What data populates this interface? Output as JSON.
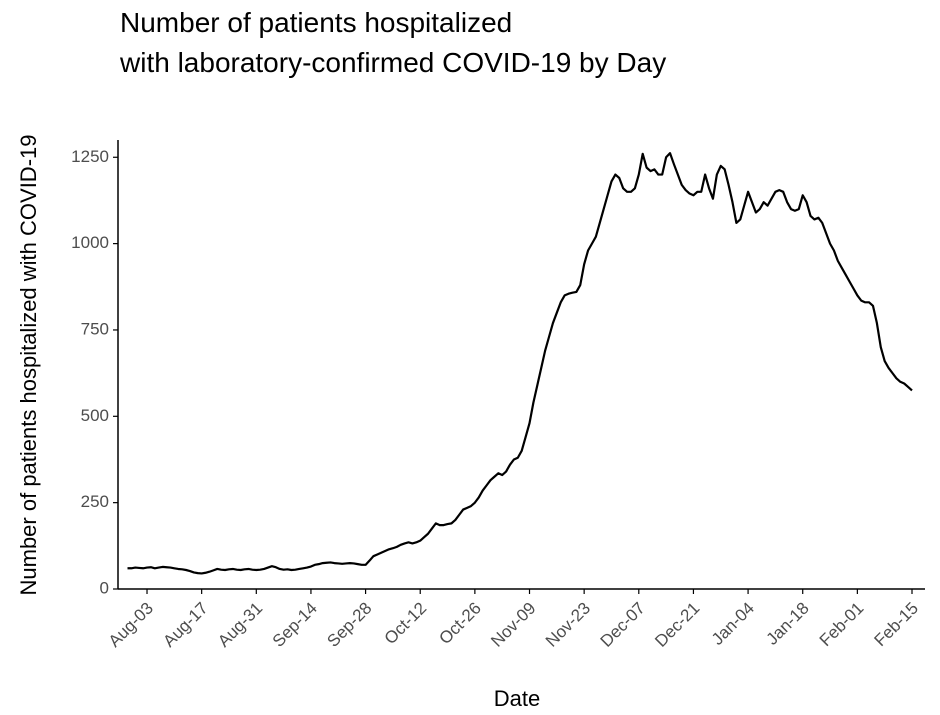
{
  "chart_data": {
    "type": "line",
    "title": [
      "Number of patients hospitalized",
      "with laboratory-confirmed COVID-19 by Day"
    ],
    "x_label": "Date",
    "y_label": "Number of patients hospitalized with COVID-19",
    "color": "#000000",
    "x": [
      "Jul-29",
      "Jul-30",
      "Jul-31",
      "Aug-01",
      "Aug-02",
      "Aug-03",
      "Aug-04",
      "Aug-05",
      "Aug-06",
      "Aug-07",
      "Aug-08",
      "Aug-09",
      "Aug-10",
      "Aug-11",
      "Aug-12",
      "Aug-13",
      "Aug-14",
      "Aug-15",
      "Aug-16",
      "Aug-17",
      "Aug-18",
      "Aug-19",
      "Aug-20",
      "Aug-21",
      "Aug-22",
      "Aug-23",
      "Aug-24",
      "Aug-25",
      "Aug-26",
      "Aug-27",
      "Aug-28",
      "Aug-29",
      "Aug-30",
      "Aug-31",
      "Sep-01",
      "Sep-02",
      "Sep-03",
      "Sep-04",
      "Sep-05",
      "Sep-06",
      "Sep-07",
      "Sep-08",
      "Sep-09",
      "Sep-10",
      "Sep-11",
      "Sep-12",
      "Sep-13",
      "Sep-14",
      "Sep-15",
      "Sep-16",
      "Sep-17",
      "Sep-18",
      "Sep-19",
      "Sep-20",
      "Sep-21",
      "Sep-22",
      "Sep-23",
      "Sep-24",
      "Sep-25",
      "Sep-26",
      "Sep-27",
      "Sep-28",
      "Sep-29",
      "Sep-30",
      "Oct-01",
      "Oct-02",
      "Oct-03",
      "Oct-04",
      "Oct-05",
      "Oct-06",
      "Oct-07",
      "Oct-08",
      "Oct-09",
      "Oct-10",
      "Oct-11",
      "Oct-12",
      "Oct-13",
      "Oct-14",
      "Oct-15",
      "Oct-16",
      "Oct-17",
      "Oct-18",
      "Oct-19",
      "Oct-20",
      "Oct-21",
      "Oct-22",
      "Oct-23",
      "Oct-24",
      "Oct-25",
      "Oct-26",
      "Oct-27",
      "Oct-28",
      "Oct-29",
      "Oct-30",
      "Oct-31",
      "Nov-01",
      "Nov-02",
      "Nov-03",
      "Nov-04",
      "Nov-05",
      "Nov-06",
      "Nov-07",
      "Nov-08",
      "Nov-09",
      "Nov-10",
      "Nov-11",
      "Nov-12",
      "Nov-13",
      "Nov-14",
      "Nov-15",
      "Nov-16",
      "Nov-17",
      "Nov-18",
      "Nov-19",
      "Nov-20",
      "Nov-21",
      "Nov-22",
      "Nov-23",
      "Nov-24",
      "Nov-25",
      "Nov-26",
      "Nov-27",
      "Nov-28",
      "Nov-29",
      "Nov-30",
      "Dec-01",
      "Dec-02",
      "Dec-03",
      "Dec-04",
      "Dec-05",
      "Dec-06",
      "Dec-07",
      "Dec-08",
      "Dec-09",
      "Dec-10",
      "Dec-11",
      "Dec-12",
      "Dec-13",
      "Dec-14",
      "Dec-15",
      "Dec-16",
      "Dec-17",
      "Dec-18",
      "Dec-19",
      "Dec-20",
      "Dec-21",
      "Dec-22",
      "Dec-23",
      "Dec-24",
      "Dec-25",
      "Dec-26",
      "Dec-27",
      "Dec-28",
      "Dec-29",
      "Dec-30",
      "Dec-31",
      "Jan-01",
      "Jan-02",
      "Jan-03",
      "Jan-04",
      "Jan-05",
      "Jan-06",
      "Jan-07",
      "Jan-08",
      "Jan-09",
      "Jan-10",
      "Jan-11",
      "Jan-12",
      "Jan-13",
      "Jan-14",
      "Jan-15",
      "Jan-16",
      "Jan-17",
      "Jan-18",
      "Jan-19",
      "Jan-20",
      "Jan-21",
      "Jan-22",
      "Jan-23",
      "Jan-24",
      "Jan-25",
      "Jan-26",
      "Jan-27",
      "Jan-28",
      "Jan-29",
      "Jan-30",
      "Jan-31",
      "Feb-01",
      "Feb-02",
      "Feb-03",
      "Feb-04",
      "Feb-05",
      "Feb-06",
      "Feb-07",
      "Feb-08",
      "Feb-09",
      "Feb-10",
      "Feb-11",
      "Feb-12",
      "Feb-13",
      "Feb-14",
      "Feb-15"
    ],
    "values": [
      60,
      60,
      62,
      61,
      60,
      62,
      63,
      60,
      62,
      64,
      63,
      62,
      60,
      58,
      57,
      55,
      52,
      48,
      46,
      45,
      47,
      50,
      54,
      58,
      56,
      55,
      57,
      58,
      56,
      55,
      57,
      58,
      56,
      55,
      56,
      58,
      62,
      66,
      63,
      58,
      56,
      57,
      55,
      56,
      58,
      60,
      62,
      65,
      70,
      72,
      75,
      76,
      77,
      75,
      74,
      73,
      74,
      75,
      74,
      72,
      70,
      70,
      82,
      95,
      100,
      105,
      110,
      115,
      118,
      122,
      128,
      132,
      135,
      132,
      135,
      140,
      150,
      160,
      175,
      190,
      185,
      185,
      188,
      190,
      200,
      215,
      230,
      235,
      240,
      250,
      265,
      285,
      300,
      315,
      325,
      335,
      330,
      340,
      360,
      375,
      380,
      400,
      440,
      480,
      540,
      590,
      640,
      690,
      730,
      770,
      800,
      830,
      850,
      855,
      858,
      860,
      880,
      940,
      980,
      1000,
      1020,
      1060,
      1100,
      1140,
      1180,
      1200,
      1190,
      1160,
      1150,
      1150,
      1160,
      1200,
      1260,
      1220,
      1210,
      1215,
      1200,
      1200,
      1250,
      1262,
      1230,
      1200,
      1170,
      1155,
      1145,
      1140,
      1150,
      1150,
      1200,
      1160,
      1130,
      1200,
      1225,
      1215,
      1170,
      1120,
      1060,
      1070,
      1110,
      1150,
      1120,
      1090,
      1100,
      1120,
      1110,
      1130,
      1150,
      1155,
      1150,
      1120,
      1100,
      1095,
      1100,
      1140,
      1120,
      1080,
      1070,
      1075,
      1060,
      1030,
      1000,
      980,
      950,
      930,
      910,
      890,
      870,
      850,
      835,
      830,
      830,
      820,
      770,
      700,
      660,
      640,
      625,
      610,
      600,
      595,
      585,
      575
    ],
    "xticks": [
      "Aug-03",
      "Aug-17",
      "Aug-31",
      "Sep-14",
      "Sep-28",
      "Oct-12",
      "Oct-26",
      "Nov-09",
      "Nov-23",
      "Dec-07",
      "Dec-21",
      "Jan-04",
      "Jan-18",
      "Feb-01",
      "Feb-15"
    ],
    "ylim": [
      0,
      1300
    ],
    "yticks": [
      0,
      250,
      500,
      750,
      1000,
      1250
    ],
    "grid": false
  }
}
